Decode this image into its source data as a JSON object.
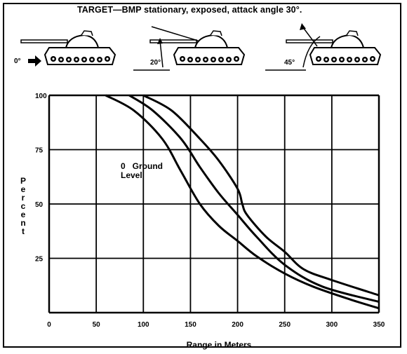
{
  "header": {
    "title": "TARGET—BMP stationary, exposed, attack angle 30°."
  },
  "illustrations": [
    {
      "angle_label": "0°",
      "icon": "tank-icon"
    },
    {
      "angle_label": "20°",
      "icon": "tank-icon"
    },
    {
      "angle_label": "45°",
      "icon": "tank-icon"
    }
  ],
  "chart_data": {
    "type": "line",
    "xlabel": "Range in Meters",
    "ylabel": "Percent",
    "xlim": [
      0,
      350
    ],
    "ylim": [
      0,
      100
    ],
    "xticks": [
      "0",
      "50",
      "100",
      "150",
      "200",
      "250",
      "300",
      "350"
    ],
    "yticks": [
      "25",
      "50",
      "75",
      "100"
    ],
    "grid": true,
    "annotation": {
      "text_line1": "0   Ground",
      "text_line2": "Level"
    },
    "series": [
      {
        "x": [
          60,
          90,
          120,
          140,
          160,
          180,
          200,
          220,
          250,
          280,
          320,
          350
        ],
        "y": [
          100,
          93,
          80,
          65,
          50,
          40,
          33,
          26,
          18,
          12,
          6,
          2
        ]
      },
      {
        "x": [
          85,
          110,
          140,
          160,
          180,
          200,
          220,
          250,
          290,
          350
        ],
        "y": [
          100,
          93,
          80,
          67,
          55,
          45,
          35,
          22,
          12,
          5
        ]
      },
      {
        "x": [
          100,
          130,
          160,
          180,
          200,
          205,
          210,
          230,
          250,
          270,
          300,
          350
        ],
        "y": [
          100,
          93,
          80,
          70,
          57,
          50,
          45,
          35,
          28,
          20,
          15,
          8
        ]
      }
    ]
  }
}
